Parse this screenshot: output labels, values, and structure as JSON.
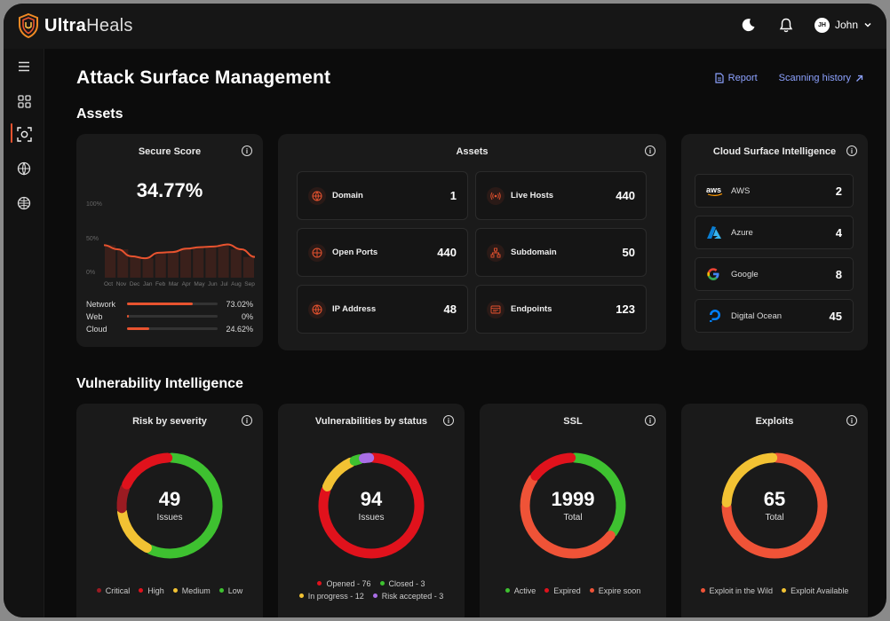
{
  "app": {
    "name_bold": "Ultra",
    "name_rest": "Heals",
    "user_initials": "JH",
    "user_name": "John"
  },
  "page": {
    "title": "Attack Surface Management",
    "report_link": "Report",
    "history_link": "Scanning history",
    "section_assets": "Assets",
    "section_vuln": "Vulnerability Intelligence"
  },
  "colors": {
    "accent": "#e8532f",
    "link": "#8da2ff",
    "card": "#1a1a1a",
    "bg": "#0c0c0c"
  },
  "secure_score": {
    "title": "Secure Score",
    "value": "34.77%",
    "y_ticks": [
      "100%",
      "50%",
      "0%"
    ],
    "months": [
      "Oct",
      "Nov",
      "Dec",
      "Jan",
      "Feb",
      "Mar",
      "Apr",
      "May",
      "Jun",
      "Jul",
      "Aug",
      "Sep"
    ],
    "trend": [
      47,
      41,
      31,
      28,
      36,
      37,
      42,
      44,
      45,
      48,
      41,
      30
    ],
    "distribution": [
      {
        "label": "Network",
        "pct": "73.02%",
        "value": 73.02
      },
      {
        "label": "Web",
        "pct": "0%",
        "value": 0
      },
      {
        "label": "Cloud",
        "pct": "24.62%",
        "value": 24.62
      }
    ]
  },
  "assets": {
    "title": "Assets",
    "items": [
      {
        "label": "Domain",
        "value": "1",
        "icon": "globe-icon"
      },
      {
        "label": "Live Hosts",
        "value": "440",
        "icon": "broadcast-icon"
      },
      {
        "label": "Open Ports",
        "value": "440",
        "icon": "network-icon"
      },
      {
        "label": "Subdomain",
        "value": "50",
        "icon": "sitemap-icon"
      },
      {
        "label": "IP Address",
        "value": "48",
        "icon": "globe-icon"
      },
      {
        "label": "Endpoints",
        "value": "123",
        "icon": "browser-icon"
      }
    ]
  },
  "cloud": {
    "title": "Cloud Surface Intelligence",
    "items": [
      {
        "label": "AWS",
        "value": "2",
        "icon": "aws-logo"
      },
      {
        "label": "Azure",
        "value": "4",
        "icon": "azure-logo"
      },
      {
        "label": "Google",
        "value": "8",
        "icon": "google-logo"
      },
      {
        "label": "Digital Ocean",
        "value": "45",
        "icon": "digital-ocean-logo"
      }
    ]
  },
  "risk": {
    "title": "Risk by severity",
    "total": "49",
    "sub": "Issues",
    "segments": [
      {
        "name": "Critical",
        "value": 4,
        "color": "#9b1b22"
      },
      {
        "name": "High",
        "value": 9,
        "color": "#e0121c"
      },
      {
        "name": "Medium",
        "value": 8,
        "color": "#f2c233"
      },
      {
        "name": "Low",
        "value": 28,
        "color": "#3ec130"
      }
    ],
    "legend": [
      "Critical",
      "High",
      "Medium",
      "Low"
    ]
  },
  "vuln_status": {
    "title": "Vulnerabilities by status",
    "total": "94",
    "sub": "Issues",
    "segments": [
      {
        "name": "Opened",
        "value": 76,
        "color": "#e0121c"
      },
      {
        "name": "Closed",
        "value": 3,
        "color": "#3ec130"
      },
      {
        "name": "In progress",
        "value": 12,
        "color": "#f2c233"
      },
      {
        "name": "Risk accepted",
        "value": 3,
        "color": "#a96ee6"
      }
    ],
    "legend": [
      "Opened - 76",
      "Closed - 3",
      "In progress - 12",
      "Risk accepted - 3"
    ]
  },
  "ssl": {
    "title": "SSL",
    "total": "1999",
    "sub": "Total",
    "segments": [
      {
        "name": "Active",
        "value": 700,
        "color": "#3ec130"
      },
      {
        "name": "Expire soon",
        "value": 1000,
        "color": "#ef5337"
      },
      {
        "name": "Expired",
        "value": 299,
        "color": "#e0121c"
      }
    ],
    "legend": [
      "Active",
      "Expired",
      "Expire soon"
    ]
  },
  "exploits": {
    "title": "Exploits",
    "total": "65",
    "sub": "Total",
    "segments": [
      {
        "name": "Exploit in the Wild",
        "value": 49,
        "color": "#ef5337"
      },
      {
        "name": "Exploit Available",
        "value": 16,
        "color": "#f2c233"
      }
    ],
    "legend": [
      "Exploit in the Wild",
      "Exploit Available"
    ]
  }
}
